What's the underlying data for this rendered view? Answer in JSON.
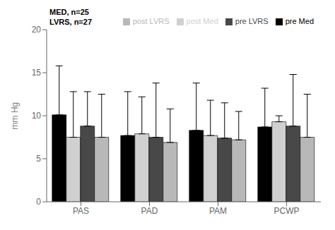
{
  "chart_data": {
    "type": "bar",
    "categories": [
      "PAS",
      "PAD",
      "PAM",
      "PCWP"
    ],
    "series": [
      {
        "name": "pre Med",
        "color": "#000000",
        "values": [
          10.1,
          7.7,
          8.3,
          8.7
        ],
        "error_upper": [
          15.8,
          12.8,
          13.8,
          13.2
        ]
      },
      {
        "name": "post Med",
        "color": "#d0d0d0",
        "values": [
          7.5,
          7.9,
          7.7,
          9.3
        ],
        "error_upper": [
          12.8,
          12.2,
          11.8,
          10.0
        ]
      },
      {
        "name": "pre LVRS",
        "color": "#484848",
        "values": [
          8.8,
          7.5,
          7.4,
          8.8
        ],
        "error_upper": [
          12.8,
          13.8,
          11.5,
          14.8
        ]
      },
      {
        "name": "post LVRS",
        "color": "#b8b8b8",
        "values": [
          7.5,
          6.9,
          7.2,
          7.5
        ],
        "error_upper": [
          12.5,
          10.8,
          10.5,
          12.5
        ]
      }
    ],
    "ylabel": "mm Hg",
    "ylim": [
      0,
      20
    ],
    "yticks": [
      0,
      5,
      10,
      15,
      20
    ],
    "annotations": [
      "MED, n=25",
      "LVRS, n=27"
    ],
    "legend": "upper right",
    "grid": false
  }
}
